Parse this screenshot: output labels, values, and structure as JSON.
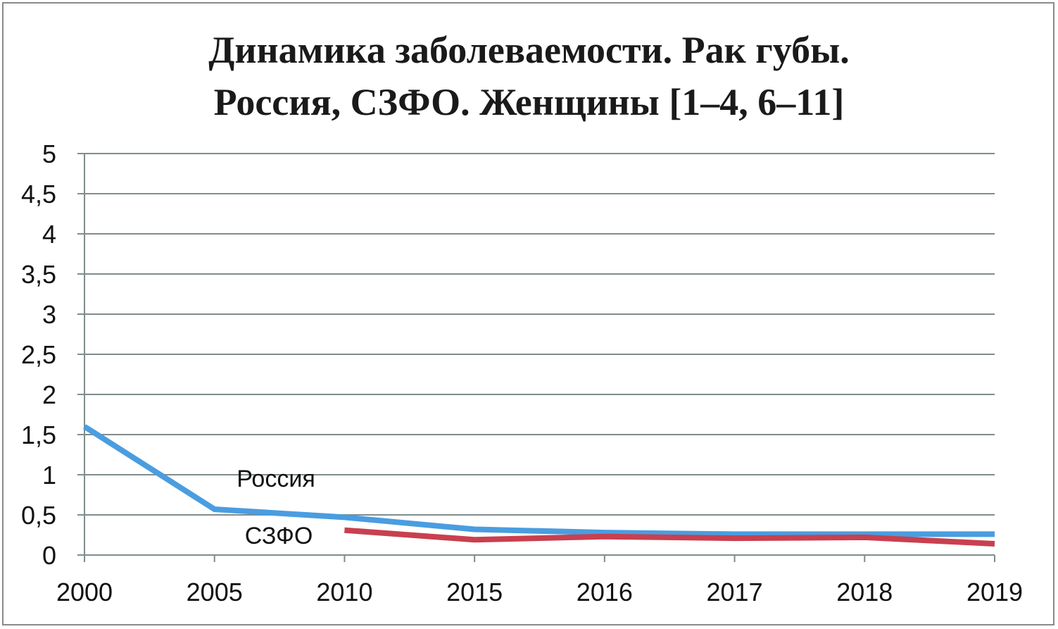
{
  "chart_data": {
    "type": "line",
    "title_lines": [
      "Динамика заболеваемости. Рак губы.",
      "Россия, СЗФО. Женщины [1–4, 6–11]"
    ],
    "categories": [
      "2000",
      "2005",
      "2010",
      "2015",
      "2016",
      "2017",
      "2018",
      "2019"
    ],
    "y_ticks": [
      "0",
      "0,5",
      "1",
      "1,5",
      "2",
      "2,5",
      "3",
      "3,5",
      "4",
      "4,5",
      "5"
    ],
    "ylim": [
      0,
      5
    ],
    "grid": true,
    "series": [
      {
        "name": "Россия",
        "color": "#4a9de0",
        "values": [
          1.6,
          0.57,
          0.47,
          0.32,
          0.28,
          0.26,
          0.26,
          0.26
        ]
      },
      {
        "name": "СЗФО",
        "color": "#c8404f",
        "values": [
          null,
          null,
          0.31,
          0.19,
          0.23,
          0.21,
          0.22,
          0.14
        ]
      }
    ]
  }
}
